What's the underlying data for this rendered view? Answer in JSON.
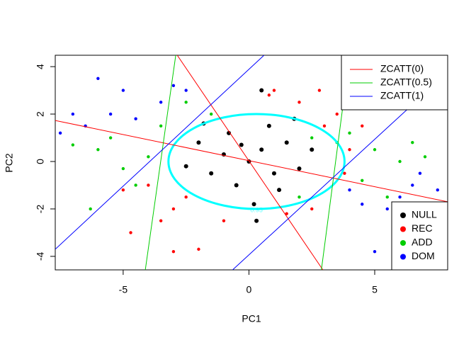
{
  "chart_data": {
    "type": "scatter",
    "xlabel": "PC1",
    "ylabel": "PC2",
    "xlim": [
      -7.7,
      7.9
    ],
    "ylim": [
      -4.57,
      4.48
    ],
    "xticks": [
      -5,
      0,
      5
    ],
    "yticks": [
      -4,
      -2,
      0,
      2,
      4
    ],
    "grid": false,
    "series": [
      {
        "name": "NULL",
        "type": "scatter",
        "color": "#000000",
        "x": [
          0,
          0.5,
          -1,
          1,
          -0.5,
          1.5,
          -1.5,
          0.8,
          -2,
          2,
          0.2,
          -0.8,
          1.2,
          -2.5,
          2.5,
          0.5,
          0.3,
          -1.8,
          1.8,
          -0.3
        ],
        "y": [
          0,
          0.5,
          0.3,
          -0.5,
          -1,
          0.8,
          -0.5,
          1.5,
          0.8,
          -0.3,
          -1.8,
          1.2,
          -1.2,
          -0.2,
          0.5,
          3,
          -2.5,
          1.6,
          1.8,
          0.7
        ]
      },
      {
        "name": "REC",
        "type": "scatter",
        "color": "#ff0000",
        "x": [
          -3,
          -2.5,
          3,
          2,
          1,
          -4,
          -3.5,
          4,
          2.5,
          -2,
          3.5,
          -4.7,
          1.5,
          -1,
          4.5,
          0.8,
          -5,
          2.8,
          -3,
          3.8
        ],
        "y": [
          -2,
          -1.5,
          1.5,
          2.5,
          3,
          -1,
          -2.5,
          0.5,
          -2,
          -3.7,
          2,
          -3,
          -2.2,
          -2.5,
          1.5,
          2.8,
          -1.2,
          3,
          -3.8,
          -0.5
        ]
      },
      {
        "name": "ADD",
        "type": "scatter",
        "color": "#00cd00",
        "x": [
          -6,
          -5,
          -4,
          5,
          6,
          4.5,
          -3.5,
          3.5,
          -6.3,
          6.5,
          -2.5,
          2.5,
          -7,
          7,
          -4.5,
          5.5,
          -1.5,
          4,
          -5.5,
          2
        ],
        "y": [
          0.5,
          -0.3,
          0.2,
          0.5,
          0,
          -0.8,
          1.5,
          0.8,
          -2,
          0.8,
          2.5,
          1,
          0.7,
          0.2,
          -1,
          -1.5,
          2,
          1.2,
          1,
          -1.5
        ]
      },
      {
        "name": "DOM",
        "type": "scatter",
        "color": "#0000ff",
        "x": [
          -6,
          -5.5,
          -6.5,
          -7,
          -4.5,
          -5,
          -3.5,
          -2.5,
          6,
          5.5,
          6.5,
          7,
          5,
          4.5,
          7.5,
          5.8,
          -7.5,
          -3,
          4,
          6.8
        ],
        "y": [
          3.5,
          2,
          1.5,
          2,
          1.8,
          3,
          2.5,
          3,
          -1.5,
          -2,
          -1,
          -2,
          -3.8,
          -1.8,
          -1.2,
          -2.8,
          1.2,
          3.2,
          -1.2,
          -0.5
        ]
      },
      {
        "name": "ZCATT(0)",
        "type": "line",
        "color": "#ff0000",
        "x": [
          -7.7,
          7.9,
          null,
          -2.85,
          2.94
        ],
        "y": [
          1.73,
          -1.7,
          null,
          4.48,
          -4.57
        ]
      },
      {
        "name": "ZCATT(0.5)",
        "type": "line",
        "color": "#00cd00",
        "x": [
          -2.91,
          -4.12,
          null,
          4.0,
          2.88
        ],
        "y": [
          4.48,
          -4.57,
          null,
          4.48,
          -4.57
        ]
      },
      {
        "name": "ZCATT(1)",
        "type": "line",
        "color": "#0000ff",
        "x": [
          -7.7,
          0.6,
          null,
          -0.65,
          7.94
        ],
        "y": [
          -3.7,
          4.48,
          null,
          -4.57,
          3.8
        ]
      }
    ],
    "ellipse": {
      "cx": 0.3,
      "cy": 0,
      "rx": 3.5,
      "ry": 2.0,
      "color": "#00ffff",
      "label": "0.95"
    },
    "line_legend_position": "topright",
    "point_legend_position": "bottomright"
  }
}
